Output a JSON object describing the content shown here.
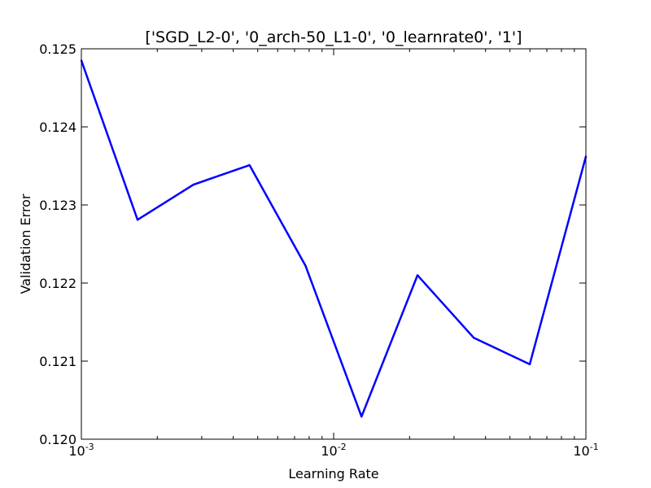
{
  "chart_data": {
    "type": "line",
    "title": "['SGD_L2-0', '0_arch-50_L1-0', '0_learnrate0', '1']",
    "xlabel": "Learning Rate",
    "ylabel": "Validation Error",
    "x_scale": "log",
    "xlim": [
      0.001,
      0.1
    ],
    "ylim": [
      0.12,
      0.125
    ],
    "grid": false,
    "x_ticks": [
      {
        "value": 0.001,
        "base": "10",
        "exp": "-3"
      },
      {
        "value": 0.01,
        "base": "10",
        "exp": "-2"
      },
      {
        "value": 0.1,
        "base": "10",
        "exp": "-1"
      }
    ],
    "y_ticks": [
      {
        "value": 0.12,
        "label": "0.120"
      },
      {
        "value": 0.121,
        "label": "0.121"
      },
      {
        "value": 0.122,
        "label": "0.122"
      },
      {
        "value": 0.123,
        "label": "0.123"
      },
      {
        "value": 0.124,
        "label": "0.124"
      },
      {
        "value": 0.125,
        "label": "0.125"
      }
    ],
    "series": [
      {
        "color": "#0000ff",
        "x": [
          0.001,
          0.00167,
          0.00278,
          0.00464,
          0.00774,
          0.0129,
          0.0215,
          0.0359,
          0.0599,
          0.1
        ],
        "y": [
          0.12485,
          0.12281,
          0.12326,
          0.12351,
          0.12222,
          0.12029,
          0.1221,
          0.1213,
          0.12096,
          0.12362
        ]
      }
    ]
  }
}
